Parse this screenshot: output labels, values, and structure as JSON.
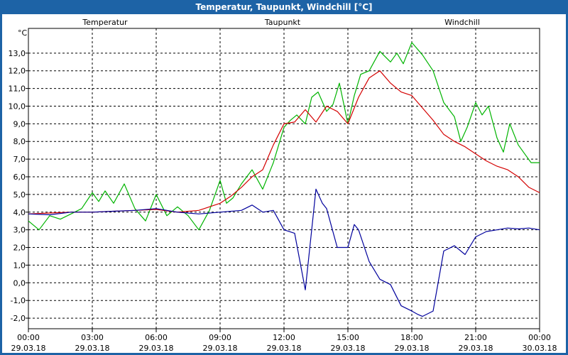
{
  "window": {
    "title": "Temperatur, Taupunkt, Windchill [°C]"
  },
  "colors": {
    "titlebar": "#1d63a6",
    "temperatur": "#d40000",
    "taupunkt": "#00009c",
    "windchill": "#00b400",
    "grid": "#000000"
  },
  "chart_data": {
    "type": "line",
    "title": "Temperatur, Taupunkt, Windchill [°C]",
    "ylabel": "°C",
    "ylim": [
      -2.6,
      14.4
    ],
    "xlim_hours": [
      0,
      24
    ],
    "y_ticks": [
      "-2,0",
      "-1,0",
      "0,0",
      "1,0",
      "2,0",
      "3,0",
      "4,0",
      "5,0",
      "6,0",
      "7,0",
      "8,0",
      "9,0",
      "10,0",
      "11,0",
      "12,0",
      "13,0"
    ],
    "y_tick_values": [
      -2,
      -1,
      0,
      1,
      2,
      3,
      4,
      5,
      6,
      7,
      8,
      9,
      10,
      11,
      12,
      13
    ],
    "x_ticks": [
      {
        "time": "00:00",
        "date": "29.03.18"
      },
      {
        "time": "03:00",
        "date": "29.03.18"
      },
      {
        "time": "06:00",
        "date": "29.03.18"
      },
      {
        "time": "09:00",
        "date": "29.03.18"
      },
      {
        "time": "12:00",
        "date": "29.03.18"
      },
      {
        "time": "15:00",
        "date": "29.03.18"
      },
      {
        "time": "18:00",
        "date": "29.03.18"
      },
      {
        "time": "21:00",
        "date": "29.03.18"
      },
      {
        "time": "00:00",
        "date": "30.03.18"
      }
    ],
    "grid": true,
    "legend": "top",
    "series": [
      {
        "name": "Temperatur",
        "x": [
          0,
          1,
          2,
          3,
          4,
          5,
          6,
          7,
          8,
          9,
          9.5,
          10,
          10.5,
          11,
          11.5,
          12,
          12.5,
          13,
          13.5,
          14,
          14.5,
          15,
          15.5,
          16,
          16.5,
          17,
          17.5,
          18,
          18.5,
          19,
          19.5,
          20,
          20.5,
          21,
          21.5,
          22,
          22.5,
          23,
          23.5,
          24
        ],
        "y": [
          3.9,
          3.95,
          4.0,
          4.0,
          4.05,
          4.1,
          4.15,
          4.0,
          4.1,
          4.5,
          4.9,
          5.4,
          6.0,
          6.4,
          7.8,
          9.0,
          9.1,
          9.8,
          9.1,
          10.0,
          9.7,
          9.0,
          10.5,
          11.6,
          12.0,
          11.3,
          10.8,
          10.6,
          9.9,
          9.2,
          8.4,
          8.0,
          7.7,
          7.3,
          6.9,
          6.6,
          6.4,
          6.0,
          5.4,
          5.1
        ]
      },
      {
        "name": "Taupunkt",
        "x": [
          0,
          1,
          2,
          3,
          4,
          5,
          6,
          7,
          8,
          9,
          10,
          10.5,
          11,
          11.5,
          12,
          12.5,
          13,
          13.3,
          13.5,
          13.8,
          14,
          14.5,
          15,
          15.3,
          15.5,
          16,
          16.5,
          17,
          17.5,
          18,
          18.3,
          18.5,
          19,
          19.5,
          20,
          20.5,
          21,
          21.5,
          22,
          22.5,
          23,
          23.5,
          24
        ],
        "y": [
          3.9,
          3.85,
          4.0,
          4.0,
          4.05,
          4.1,
          4.2,
          4.0,
          3.9,
          4.0,
          4.1,
          4.4,
          4.0,
          4.1,
          3.0,
          2.8,
          -0.4,
          3.0,
          5.3,
          4.5,
          4.2,
          2.0,
          2.0,
          3.3,
          3.0,
          1.2,
          0.2,
          -0.1,
          -1.3,
          -1.6,
          -1.8,
          -1.9,
          -1.6,
          1.8,
          2.1,
          1.6,
          2.6,
          2.9,
          3.0,
          3.1,
          3.05,
          3.1,
          3.0
        ]
      },
      {
        "name": "Windchill",
        "x": [
          0,
          0.5,
          1,
          1.5,
          2,
          2.5,
          3,
          3.3,
          3.6,
          4,
          4.5,
          5,
          5.5,
          6,
          6.5,
          7,
          7.5,
          8,
          8.5,
          9,
          9.3,
          9.6,
          10,
          10.5,
          11,
          11.5,
          12,
          12.3,
          12.6,
          13,
          13.3,
          13.6,
          14,
          14.3,
          14.6,
          15,
          15.3,
          15.6,
          16,
          16.5,
          17,
          17.3,
          17.6,
          18,
          18.5,
          19,
          19.5,
          20,
          20.3,
          20.6,
          21,
          21.3,
          21.6,
          22,
          22.3,
          22.6,
          23,
          23.3,
          23.6,
          24
        ],
        "y": [
          3.5,
          3.0,
          3.8,
          3.6,
          3.9,
          4.2,
          5.1,
          4.6,
          5.2,
          4.5,
          5.6,
          4.2,
          3.5,
          5.0,
          3.8,
          4.3,
          3.8,
          3.0,
          4.1,
          5.8,
          4.5,
          4.8,
          5.6,
          6.4,
          5.3,
          6.8,
          8.8,
          9.2,
          9.5,
          9.0,
          10.5,
          10.8,
          9.7,
          10.1,
          11.3,
          9.0,
          10.6,
          11.8,
          12.0,
          13.1,
          12.5,
          13.0,
          12.4,
          13.6,
          12.9,
          12.0,
          10.2,
          9.4,
          8.0,
          8.8,
          10.2,
          9.5,
          10.0,
          8.2,
          7.4,
          9.0,
          7.8,
          7.3,
          6.8,
          6.8
        ]
      }
    ]
  }
}
